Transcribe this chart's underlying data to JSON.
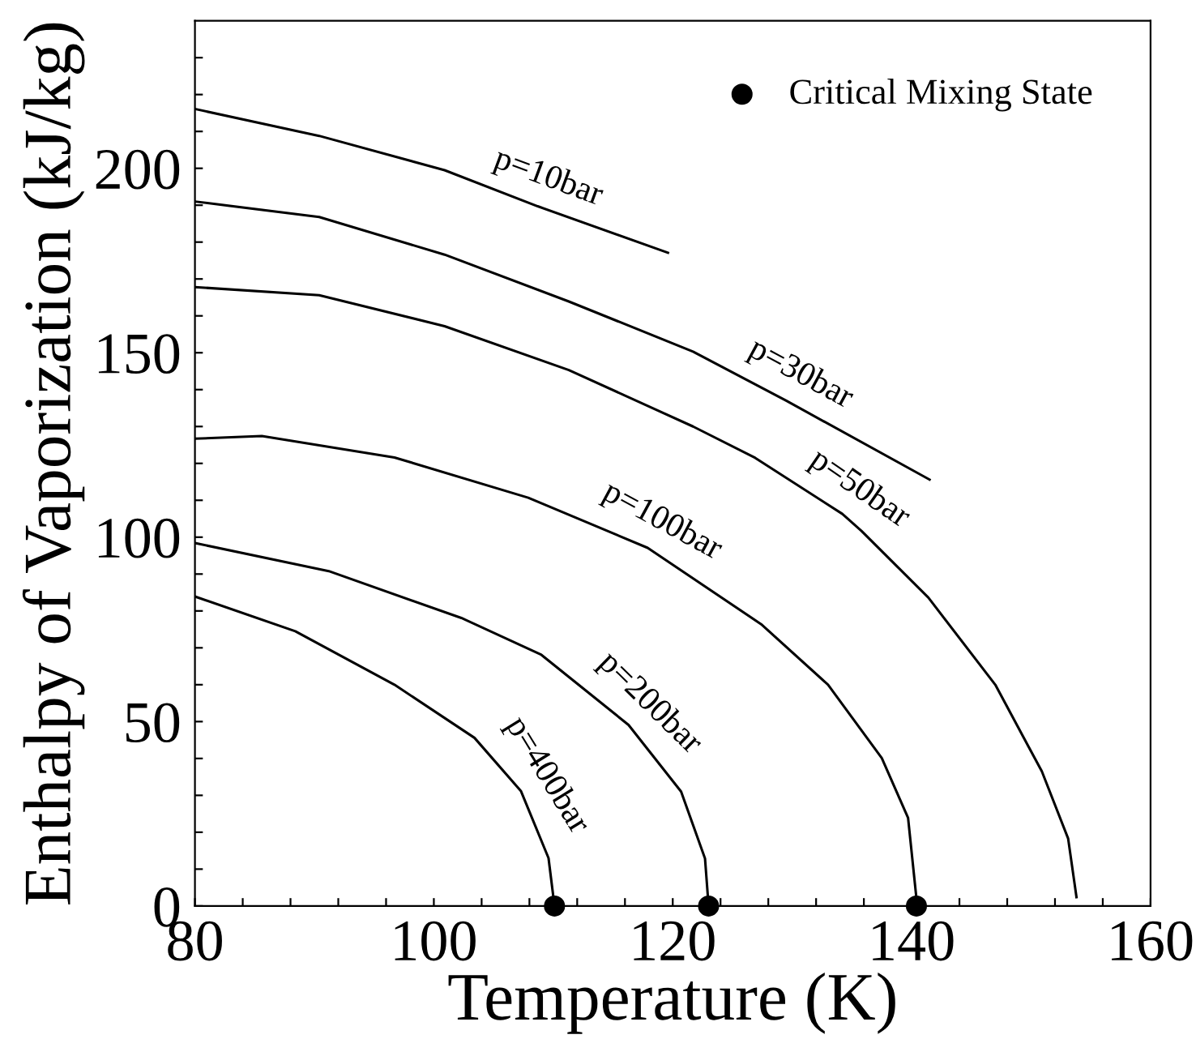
{
  "chart_data": {
    "type": "line",
    "xlabel": "Temperature (K)",
    "ylabel": "Enthalpy of Vaporization (kJ/kg)",
    "xlim": [
      80,
      160
    ],
    "ylim": [
      0,
      240
    ],
    "xticks": [
      80,
      {
        "value": 84,
        "label": null
      },
      {
        "value": 88,
        "label": null
      },
      {
        "value": 92,
        "label": null
      },
      {
        "value": 96,
        "label": null
      },
      100,
      {
        "value": 104,
        "label": null
      },
      {
        "value": 108,
        "label": null
      },
      {
        "value": 112,
        "label": null
      },
      {
        "value": 116,
        "label": null
      },
      120,
      {
        "value": 124,
        "label": null
      },
      {
        "value": 128,
        "label": null
      },
      {
        "value": 132,
        "label": null
      },
      {
        "value": 136,
        "label": null
      },
      140,
      {
        "value": 144,
        "label": null
      },
      {
        "value": 148,
        "label": null
      },
      {
        "value": 152,
        "label": null
      },
      {
        "value": 156,
        "label": null
      },
      160
    ],
    "yticks": [
      0,
      {
        "value": 10,
        "label": null
      },
      {
        "value": 20,
        "label": null
      },
      {
        "value": 30,
        "label": null
      },
      {
        "value": 40,
        "label": null
      },
      50,
      {
        "value": 60,
        "label": null
      },
      {
        "value": 70,
        "label": null
      },
      {
        "value": 80,
        "label": null
      },
      {
        "value": 90,
        "label": null
      },
      100,
      {
        "value": 110,
        "label": null
      },
      {
        "value": 120,
        "label": null
      },
      {
        "value": 130,
        "label": null
      },
      {
        "value": 140,
        "label": null
      },
      150,
      {
        "value": 160,
        "label": null
      },
      {
        "value": 170,
        "label": null
      },
      {
        "value": 180,
        "label": null
      },
      {
        "value": 190,
        "label": null
      },
      200,
      {
        "value": 210,
        "label": null
      },
      {
        "value": 220,
        "label": null
      },
      {
        "value": 230,
        "label": null
      }
    ],
    "grid": false,
    "legend": "top right",
    "line_style": "solid",
    "series": [
      {
        "name": "p=10bar",
        "color": "#000000",
        "x": [
          80,
          90.4,
          100.9,
          108.7,
          119.6
        ],
        "values": [
          216.1,
          208.8,
          199.5,
          189.7,
          177.1
        ]
      },
      {
        "name": "p=30bar",
        "color": "#000000",
        "x": [
          80,
          90.4,
          100.9,
          111.3,
          121.7,
          129.5,
          141.5
        ],
        "values": [
          191,
          186.8,
          176.6,
          163.9,
          150.3,
          137,
          115.6
        ]
      },
      {
        "name": "p=50bar",
        "color": "#000000",
        "x": [
          80,
          90.4,
          100.9,
          111.3,
          121.7,
          126.9,
          134.2,
          135.8,
          141.4,
          147,
          150.9,
          153.1,
          153.8
        ],
        "values": [
          167.8,
          165.6,
          157.2,
          145.3,
          130,
          121.5,
          106.3,
          101.7,
          83.6,
          60,
          36.5,
          18.3,
          2.4
        ]
      },
      {
        "name": "p=100bar",
        "color": "#000000",
        "x": [
          80,
          85.6,
          96.7,
          107.9,
          117.9,
          127.4,
          133,
          137.5,
          139.7,
          140.4
        ],
        "values": [
          126.7,
          127.4,
          121.6,
          110.7,
          97.1,
          76.4,
          60,
          40.1,
          23.9,
          2.1
        ]
      },
      {
        "name": "p=200bar",
        "color": "#000000",
        "x": [
          80,
          91.2,
          102.3,
          109,
          116.3,
          120.7,
          122.7,
          123
        ],
        "values": [
          98.4,
          90.8,
          78.1,
          68.1,
          49.1,
          31,
          12.9,
          0
        ]
      },
      {
        "name": "p=400bar",
        "color": "#000000",
        "x": [
          80,
          88.4,
          96.7,
          103.4,
          107.3,
          109.6,
          110.1
        ],
        "values": [
          83.9,
          74.5,
          60,
          45.6,
          31.1,
          13,
          0
        ]
      },
      {
        "type": "scatter",
        "name": "Critical Mixing State",
        "color": "#000000",
        "marker": "circle",
        "x": [
          110.1,
          123,
          140.4
        ],
        "values": [
          0,
          0,
          0
        ]
      }
    ]
  }
}
